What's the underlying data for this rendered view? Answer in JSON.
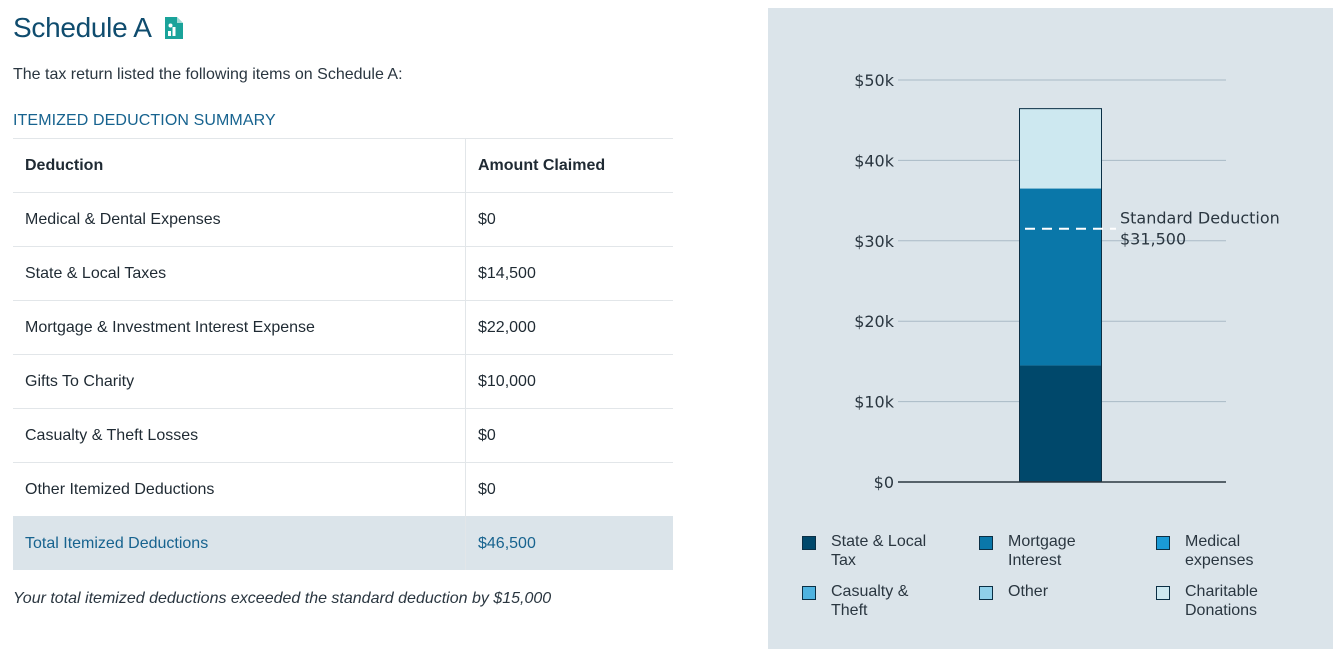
{
  "header": {
    "title": "Schedule A",
    "icon": "document-chart-icon",
    "intro": "The tax return listed the following items on Schedule A:"
  },
  "summary": {
    "section_label": "ITEMIZED DEDUCTION SUMMARY",
    "columns": [
      "Deduction",
      "Amount Claimed"
    ],
    "rows": [
      {
        "label": "Medical & Dental Expenses",
        "amount": "$0"
      },
      {
        "label": "State & Local Taxes",
        "amount": "$14,500"
      },
      {
        "label": "Mortgage & Investment Interest Expense",
        "amount": "$22,000"
      },
      {
        "label": "Gifts To Charity",
        "amount": "$10,000"
      },
      {
        "label": "Casualty & Theft Losses",
        "amount": "$0"
      },
      {
        "label": "Other Itemized Deductions",
        "amount": "$0"
      }
    ],
    "total": {
      "label": "Total Itemized Deductions",
      "amount": "$46,500"
    },
    "footnote": "Your total itemized deductions exceeded the standard deduction by $15,000"
  },
  "chart_data": {
    "type": "bar",
    "stacked": true,
    "categories": [
      ""
    ],
    "ylim": [
      0,
      50000
    ],
    "y_ticks": [
      0,
      10000,
      20000,
      30000,
      40000,
      50000
    ],
    "y_tick_labels": [
      "$0",
      "$10k",
      "$20k",
      "$30k",
      "$40k",
      "$50k"
    ],
    "grid": true,
    "series": [
      {
        "name": "State & Local Tax",
        "values": [
          14500
        ],
        "color": "#00486b"
      },
      {
        "name": "Mortgage Interest",
        "values": [
          22000
        ],
        "color": "#0a77a9"
      },
      {
        "name": "Medical expenses",
        "values": [
          0
        ],
        "color": "#1a9ad6"
      },
      {
        "name": "Casualty & Theft",
        "values": [
          0
        ],
        "color": "#4fb3e0"
      },
      {
        "name": "Other",
        "values": [
          0
        ],
        "color": "#8fd0ea"
      },
      {
        "name": "Charitable Donations",
        "values": [
          10000
        ],
        "color": "#cde8f0"
      }
    ],
    "reference_line": {
      "label": "Standard Deduction",
      "value_label": "$31,500",
      "value": 31500
    },
    "legend_position": "bottom"
  }
}
